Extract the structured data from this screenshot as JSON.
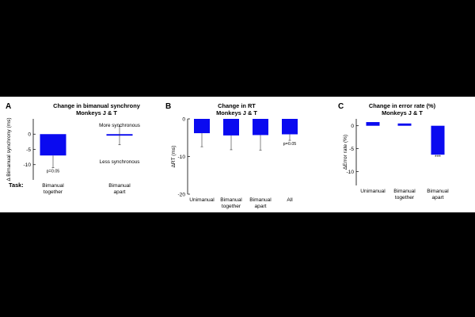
{
  "figure": {
    "task_label": "Task:",
    "bar_color": "#0a0af0"
  },
  "chart_data": [
    {
      "type": "bar",
      "panel": "A",
      "title": "Change in bimanual synchrony",
      "subtitle": "Monkeys J & T",
      "ylabel": "Δ Bimanual synchrony (ms)",
      "ylim": [
        -15,
        5
      ],
      "yticks": [
        -10,
        -5,
        0
      ],
      "categories": [
        "Bimanual\ntogether",
        "Bimanual\napart"
      ],
      "values": [
        -7.0,
        -0.5
      ],
      "errors": [
        4.0,
        3.0
      ],
      "bar_labels": [
        "p=0.05",
        ""
      ],
      "annotations": [
        "More synchronous",
        "Less synchronous"
      ]
    },
    {
      "type": "bar",
      "panel": "B",
      "title": "Change in RT",
      "subtitle": "Monkeys J & T",
      "ylabel": "ΔRT (ms)",
      "ylim": [
        -20,
        0
      ],
      "yticks": [
        -20,
        -10,
        0
      ],
      "categories": [
        "Unimanual",
        "Bimanual\ntogether",
        "Bimanual\napart",
        "All"
      ],
      "values": [
        -3.8,
        -4.4,
        -4.3,
        -4.1
      ],
      "errors": [
        3.6,
        3.8,
        4.0,
        1.6
      ],
      "bar_labels": [
        "",
        "",
        "",
        "p=0.05"
      ]
    },
    {
      "type": "bar",
      "panel": "C",
      "title": "Change in error rate (%)",
      "subtitle": "Monkeys J & T",
      "ylabel": "ΔError rate (%)",
      "ylim": [
        -13,
        1.5
      ],
      "yticks": [
        -10,
        -5,
        0
      ],
      "categories": [
        "Unimanual",
        "Bimanual\ntogether",
        "Bimanual\napart"
      ],
      "values": [
        0.8,
        0.5,
        -6.3
      ],
      "errors": [
        0,
        0,
        0
      ],
      "bar_labels": [
        "",
        "",
        "***"
      ]
    }
  ]
}
